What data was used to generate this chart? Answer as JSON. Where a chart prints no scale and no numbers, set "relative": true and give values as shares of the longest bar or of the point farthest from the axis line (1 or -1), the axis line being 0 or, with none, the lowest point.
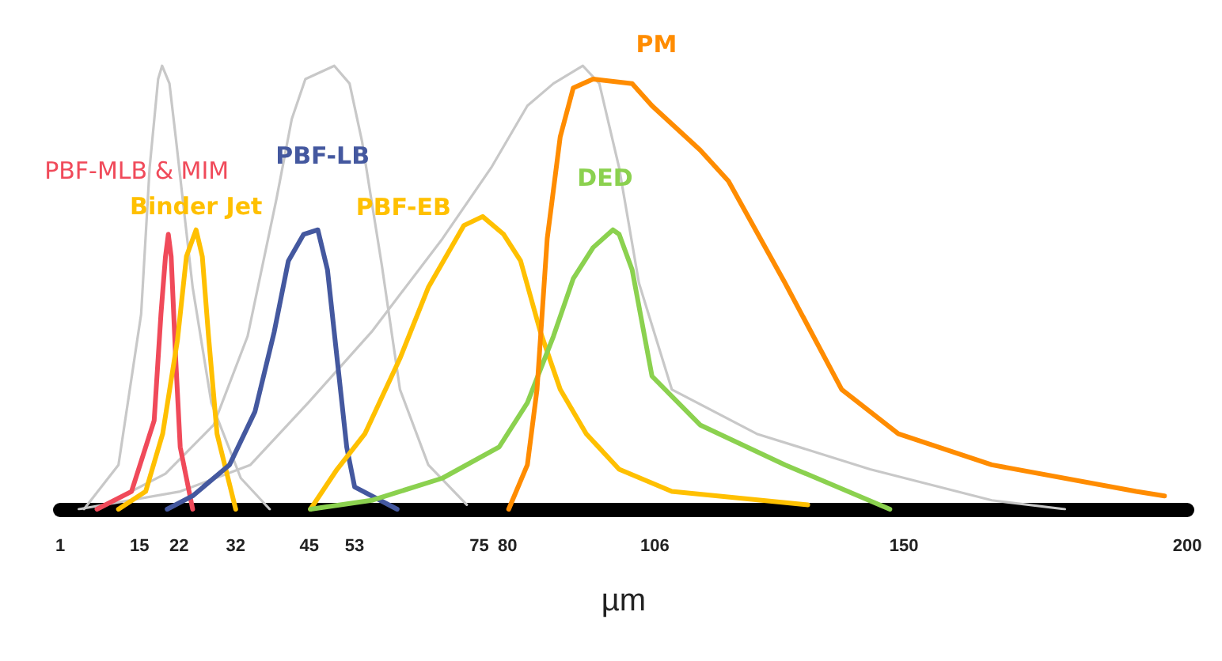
{
  "chart_data": {
    "type": "line",
    "relative": true,
    "xlabel": "µm",
    "marker": "none",
    "xlim": [
      1,
      200
    ],
    "xticks": [
      1,
      15,
      22,
      32,
      45,
      53,
      75,
      80,
      106,
      150,
      200
    ],
    "series": [
      {
        "color": "#c8c8c8",
        "x": [
          5.2,
          11.3,
          15.3,
          16.8,
          18.3,
          19.0,
          20.3,
          21.4,
          24.4,
          27.7,
          32.9,
          38.0
        ],
        "values": [
          0,
          0.1,
          0.44,
          0.77,
          0.97,
          1.0,
          0.96,
          0.84,
          0.5,
          0.24,
          0.07,
          0
        ]
      },
      {
        "color": "#c8c8c8",
        "x": [
          7.5,
          19.6,
          28.1,
          34.1,
          39.2,
          41.9,
          44.3,
          49.4,
          52.1,
          54.3,
          57.8,
          61,
          66,
          72.8
        ],
        "values": [
          0,
          0.08,
          0.19,
          0.39,
          0.7,
          0.88,
          0.97,
          1.0,
          0.96,
          0.83,
          0.55,
          0.27,
          0.1,
          0.01
        ]
      },
      {
        "color": "#c8c8c8",
        "x": [
          4.3,
          22.2,
          34.6,
          44.8,
          56,
          68.5,
          77.1,
          83.5,
          88.1,
          93.3,
          96.2,
          99.7,
          103.2,
          109,
          124,
          144,
          165.5,
          178.4
        ],
        "values": [
          0,
          0.04,
          0.1,
          0.24,
          0.4,
          0.61,
          0.77,
          0.91,
          0.96,
          1.0,
          0.96,
          0.77,
          0.51,
          0.27,
          0.17,
          0.09,
          0.02,
          0
        ]
      },
      {
        "name": "PBF-MLB & MIM",
        "color": "#f04a5a",
        "x": [
          7.5,
          13.6,
          17.6,
          18.8,
          19.6,
          20.1,
          20.6,
          21.4,
          22.2,
          24.4
        ],
        "values": [
          0,
          0.04,
          0.2,
          0.44,
          0.57,
          0.62,
          0.57,
          0.34,
          0.14,
          0
        ]
      },
      {
        "name": "Binder Jet",
        "color": "#ffc000",
        "x": [
          11.3,
          16.1,
          19.1,
          21.7,
          23.3,
          25.0,
          26.1,
          27.2,
          28.7,
          32
        ],
        "values": [
          0,
          0.04,
          0.17,
          0.38,
          0.57,
          0.63,
          0.57,
          0.39,
          0.17,
          0
        ]
      },
      {
        "name": "PBF-LB",
        "color": "#44589f",
        "x": [
          19.9,
          24.4,
          30.9,
          35.4,
          38.8,
          41.3,
          44.0,
          46.5,
          48.2,
          49.9,
          51.6,
          53,
          60.5
        ],
        "values": [
          0,
          0.03,
          0.1,
          0.22,
          0.4,
          0.56,
          0.62,
          0.63,
          0.54,
          0.34,
          0.14,
          0.05,
          0
        ]
      },
      {
        "name": "PBF-EB",
        "color": "#ffc000",
        "x": [
          45.2,
          49.9,
          54.8,
          61,
          66,
          72.3,
          75.6,
          79.3,
          82.3,
          85.8,
          89.3,
          93.9,
          99.7,
          109,
          133
        ],
        "values": [
          0,
          0.09,
          0.17,
          0.34,
          0.5,
          0.64,
          0.66,
          0.62,
          0.56,
          0.4,
          0.27,
          0.17,
          0.09,
          0.04,
          0.01
        ]
      },
      {
        "name": "DED",
        "color": "#8bd14f",
        "x": [
          45.2,
          56,
          68.5,
          78.5,
          83.5,
          88.1,
          91.6,
          95.1,
          98.6,
          99.7,
          102,
          105.5,
          114,
          129,
          147.5
        ],
        "values": [
          0,
          0.02,
          0.07,
          0.14,
          0.24,
          0.39,
          0.52,
          0.59,
          0.63,
          0.62,
          0.54,
          0.3,
          0.19,
          0.1,
          0
        ]
      },
      {
        "name": "PM",
        "color": "#ff8c00",
        "x": [
          80.2,
          83.5,
          85.2,
          87,
          89.3,
          91.6,
          95.1,
          102,
          105.5,
          114,
          119,
          129,
          139,
          149,
          165.5,
          191,
          196
        ],
        "values": [
          0,
          0.1,
          0.27,
          0.61,
          0.84,
          0.95,
          0.97,
          0.96,
          0.91,
          0.81,
          0.74,
          0.51,
          0.27,
          0.17,
          0.1,
          0.04,
          0.03
        ]
      }
    ]
  }
}
